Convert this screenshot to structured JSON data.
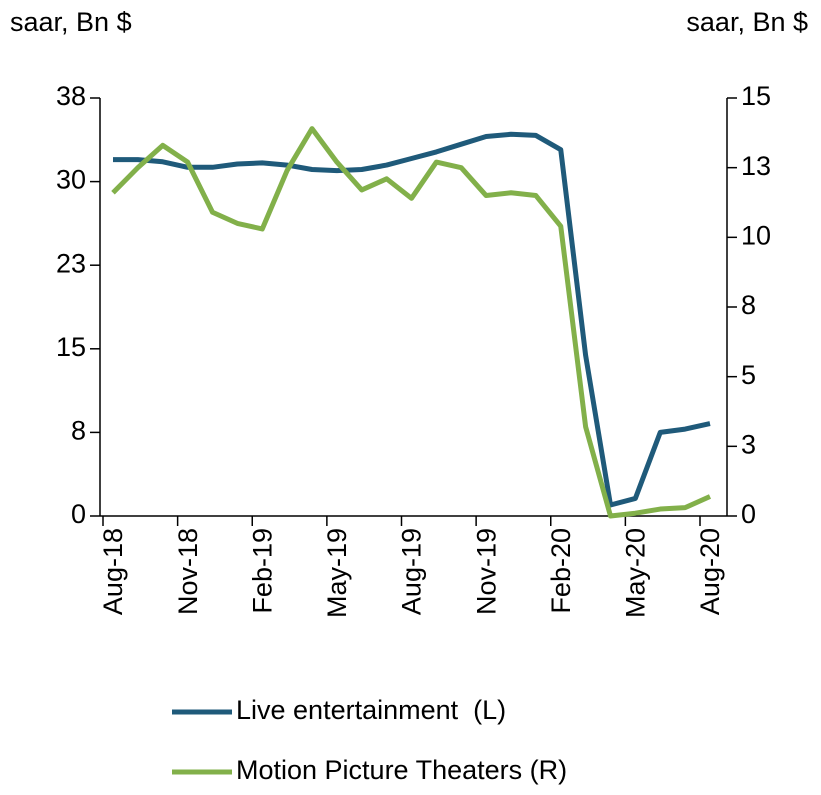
{
  "chart_data": {
    "type": "line",
    "y_label": "saar, Bn $",
    "y2_label": "saar, Bn $",
    "categories": [
      "Aug-18",
      null,
      null,
      "Nov-18",
      null,
      null,
      "Feb-19",
      null,
      null,
      "May-19",
      null,
      null,
      "Aug-19",
      null,
      null,
      "Nov-19",
      null,
      null,
      "Feb-20",
      null,
      null,
      "May-20",
      null,
      null,
      "Aug-20"
    ],
    "series": [
      {
        "name": "Live entertainment  (L)",
        "color": "#1f5a7a",
        "axis": "y",
        "values": [
          32.4,
          32.4,
          32.2,
          31.7,
          31.7,
          32.0,
          32.1,
          31.9,
          31.5,
          31.4,
          31.5,
          31.9,
          32.5,
          33.1,
          33.8,
          34.5,
          34.7,
          34.6,
          33.3,
          14.6,
          1.0,
          1.6,
          7.6,
          7.9,
          8.4
        ]
      },
      {
        "name": "Motion Picture Theaters (R)",
        "color": "#82b04a",
        "axis": "y2",
        "values": [
          11.6,
          12.5,
          13.3,
          12.7,
          10.9,
          10.5,
          10.3,
          12.4,
          13.9,
          12.7,
          11.7,
          12.1,
          11.4,
          12.7,
          12.5,
          11.5,
          11.6,
          11.5,
          10.4,
          3.2,
          0.0,
          0.1,
          0.25,
          0.3,
          0.7
        ]
      }
    ],
    "ylim": [
      0,
      38
    ],
    "yticks": [
      0,
      {
        "value": 7.6,
        "label": "8"
      },
      {
        "value": 15.2,
        "label": "15"
      },
      {
        "value": 22.8,
        "label": "23"
      },
      {
        "value": 30.4,
        "label": "30"
      },
      38
    ],
    "y2lim": [
      0,
      15
    ],
    "y2ticks": [
      0,
      {
        "value": 2.5,
        "label": "3"
      },
      5,
      {
        "value": 7.5,
        "label": "8"
      },
      10,
      {
        "value": 12.5,
        "label": "13"
      },
      15
    ]
  }
}
